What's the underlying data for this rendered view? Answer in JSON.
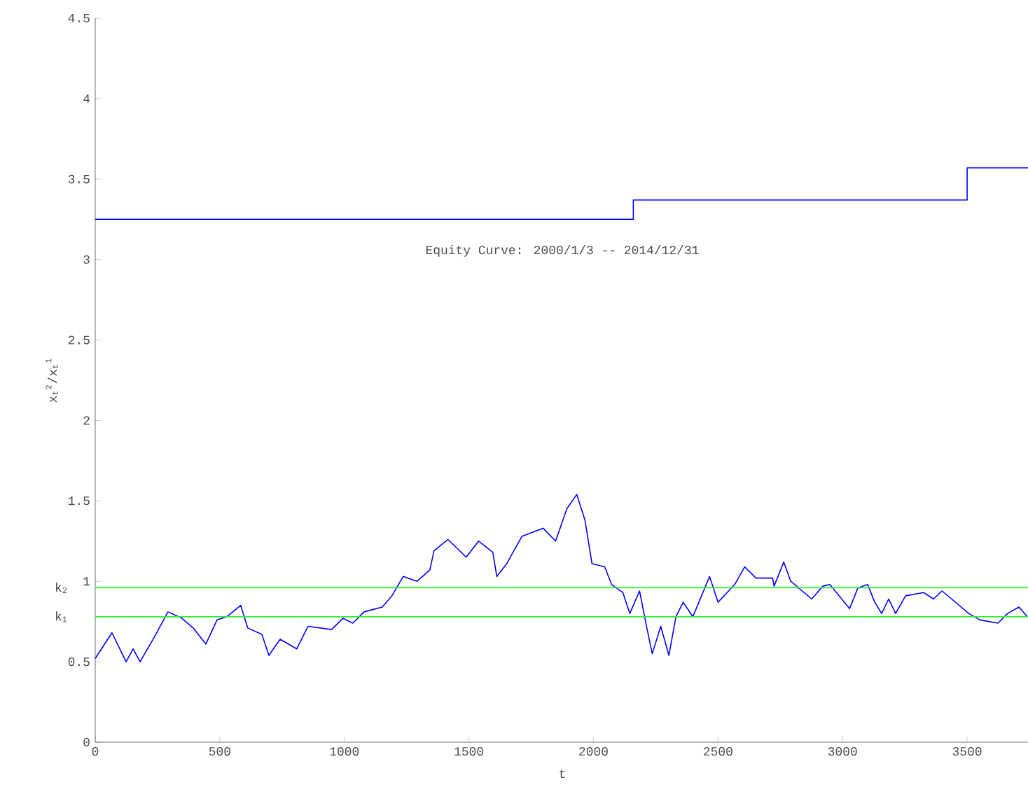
{
  "chart_data": {
    "type": "line",
    "title": "Equity Curve: 2000/1/3 -- 2014/12/31",
    "xlabel": "t",
    "ylabel": "x$_{t}$$^{2}$/x$_{t}$$^{1}$",
    "xlim": [
      0,
      3750
    ],
    "ylim": [
      0,
      4.5
    ],
    "xticks": [
      0,
      500,
      1000,
      1500,
      2000,
      2500,
      3000,
      3500
    ],
    "yticks": [
      0,
      0.5,
      1,
      1.5,
      2,
      2.5,
      3,
      3.5,
      4,
      4.5
    ],
    "grid": false,
    "line_style": "solid",
    "series": [
      {
        "type": "step",
        "color": "#0000ff",
        "x": [
          0,
          2160,
          3500,
          3750
        ],
        "values": [
          3.25,
          3.37,
          3.57,
          3.57
        ]
      },
      {
        "color": "#0000ff",
        "x": [
          0,
          67,
          124,
          152,
          180,
          236,
          292,
          348,
          393,
          444,
          489,
          528,
          584,
          612,
          669,
          697,
          742,
          809,
          854,
          949,
          994,
          1034,
          1079,
          1152,
          1191,
          1236,
          1292,
          1343,
          1360,
          1416,
          1489,
          1539,
          1596,
          1612,
          1652,
          1713,
          1798,
          1848,
          1893,
          1933,
          1966,
          1994,
          2045,
          2073,
          2118,
          2146,
          2185,
          2213,
          2236,
          2270,
          2303,
          2331,
          2360,
          2399,
          2466,
          2500,
          2567,
          2607,
          2652,
          2719,
          2725,
          2764,
          2792,
          2876,
          2921,
          2949,
          3028,
          3062,
          3101,
          3129,
          3157,
          3185,
          3213,
          3253,
          3326,
          3365,
          3399,
          3438,
          3506,
          3551,
          3624,
          3663,
          3708,
          3742
        ],
        "values": [
          0.52,
          0.68,
          0.5,
          0.58,
          0.5,
          0.65,
          0.81,
          0.77,
          0.71,
          0.61,
          0.76,
          0.78,
          0.85,
          0.71,
          0.67,
          0.54,
          0.64,
          0.58,
          0.72,
          0.7,
          0.77,
          0.74,
          0.81,
          0.84,
          0.91,
          1.03,
          1.0,
          1.07,
          1.19,
          1.26,
          1.15,
          1.25,
          1.18,
          1.03,
          1.11,
          1.28,
          1.33,
          1.25,
          1.45,
          1.54,
          1.38,
          1.11,
          1.09,
          0.98,
          0.93,
          0.8,
          0.94,
          0.72,
          0.55,
          0.72,
          0.54,
          0.78,
          0.87,
          0.78,
          1.03,
          0.87,
          0.98,
          1.09,
          1.02,
          1.02,
          0.97,
          1.12,
          1.0,
          0.89,
          0.97,
          0.98,
          0.83,
          0.96,
          0.98,
          0.87,
          0.8,
          0.89,
          0.8,
          0.91,
          0.93,
          0.89,
          0.94,
          0.89,
          0.8,
          0.76,
          0.74,
          0.8,
          0.84,
          0.78
        ]
      }
    ],
    "ref_lines": [
      {
        "axis": "y",
        "value": 0.96,
        "label": "k$_{2}$",
        "color": "#33ee33"
      },
      {
        "axis": "y",
        "value": 0.78,
        "label": "k$_{1}$",
        "color": "#33ee33"
      }
    ]
  }
}
